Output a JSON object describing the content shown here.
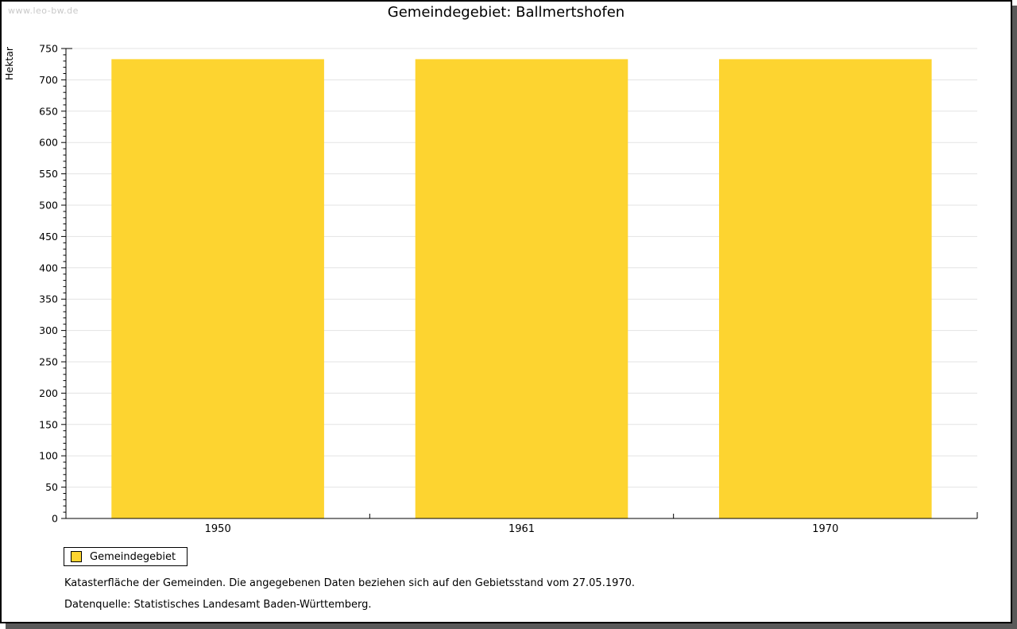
{
  "watermark": "www.leo-bw.de",
  "title": "Gemeindegebiet: Ballmertshofen",
  "chart_data": {
    "type": "bar",
    "title": "Gemeindegebiet: Ballmertshofen",
    "categories": [
      "1950",
      "1961",
      "1970"
    ],
    "series": [
      {
        "name": "Gemeindegebiet",
        "values": [
          733,
          733,
          733
        ]
      }
    ],
    "xlabel": "",
    "ylabel": "Hektar",
    "ylim": [
      0,
      750
    ],
    "y_major_step": 50,
    "y_minor_step": 10,
    "grid": true,
    "bar_color": "#FDD430",
    "legend_position": "bottom-left"
  },
  "legend": {
    "items": [
      {
        "label": "Gemeindegebiet",
        "color": "#FDD430"
      }
    ]
  },
  "footnotes": [
    "Katasterfläche der Gemeinden. Die angegebenen Daten beziehen sich auf den Gebietsstand vom 27.05.1970.",
    "Datenquelle: Statistisches Landesamt Baden-Württemberg."
  ]
}
